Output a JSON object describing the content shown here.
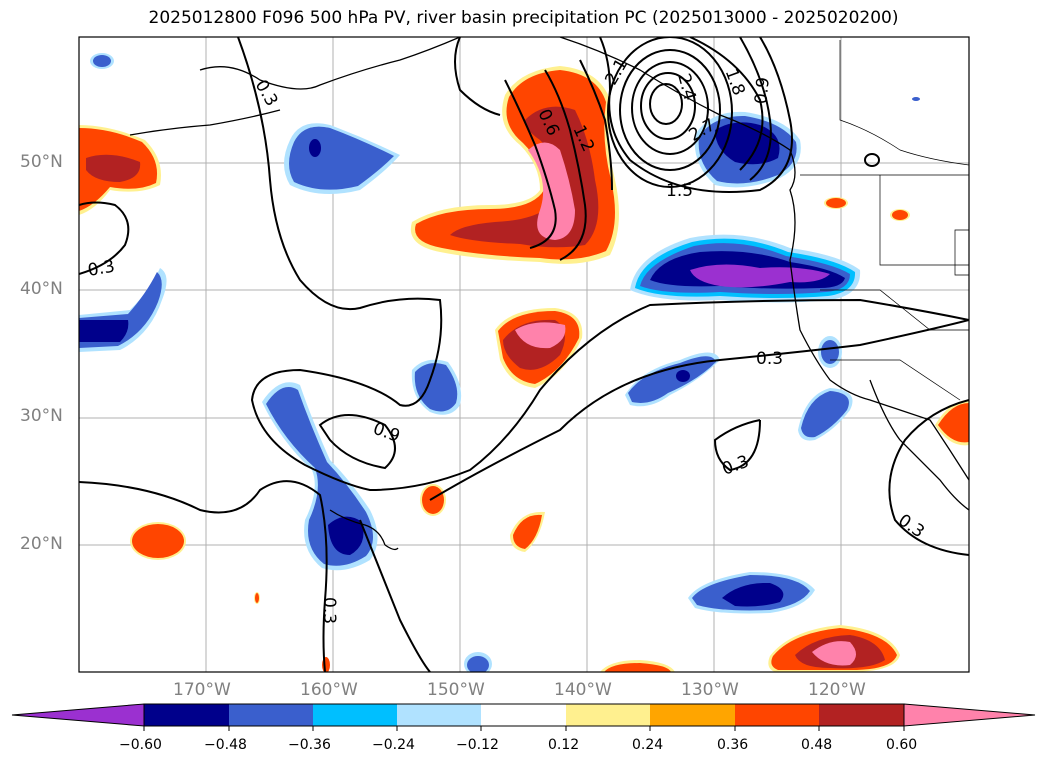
{
  "title": "2025012800 F096 500 hPa PV, river basin precipitation PC (2025013000 - 2025020200)",
  "lat_labels": [
    "50°N",
    "40°N",
    "30°N",
    "20°N"
  ],
  "lon_labels": [
    "170°W",
    "160°W",
    "150°W",
    "140°W",
    "130°W",
    "120°W"
  ],
  "contour_labels": [
    "0.3",
    "0.3",
    "0.6",
    "1.2",
    "1.5",
    "1.8",
    "0.9",
    "2.1",
    "2.4",
    "2.7",
    "0.3",
    "0.9",
    "0.3",
    "0.3",
    "0.3"
  ],
  "colorbar": {
    "ticks": [
      "−0.60",
      "−0.48",
      "−0.36",
      "−0.24",
      "−0.12",
      "0.12",
      "0.24",
      "0.36",
      "0.48",
      "0.60"
    ],
    "colors": [
      "#9b30d0",
      "#00008b",
      "#3a5fcd",
      "#00bfff",
      "#b0e2ff",
      "#ffffff",
      "#fff08f",
      "#ffa500",
      "#ff4500",
      "#b22222",
      "#ff82ab"
    ]
  }
}
